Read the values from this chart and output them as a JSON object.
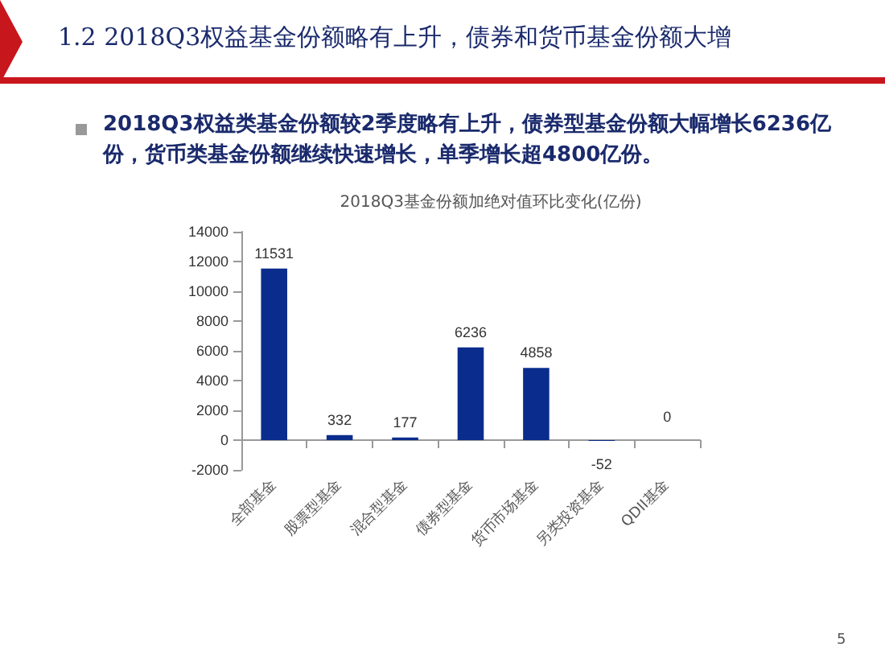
{
  "chart_data": {
    "type": "bar",
    "title": "2018Q3基金份额加绝对值环比变化(亿份)",
    "annotations": [
      "1.2 2018Q3权益基金份额略有上升，债券和货币基金份额大增",
      "2018Q3权益类基金份额较2季度略有上升，债券型基金份额大幅增长6236亿份，货币类基金份额继续快速增长，单季增长超4800亿份。",
      "5"
    ],
    "categories": [
      "全部基金",
      "股票型基金",
      "混合型基金",
      "债券型基金",
      "货币市场基金",
      "另类投资基金",
      "QDII基金"
    ],
    "values": [
      11531,
      332,
      177,
      6236,
      4858,
      -52,
      0
    ],
    "color": "#0a2c8c",
    "ylim": [
      -2000,
      14000
    ],
    "yticks": [
      -2000,
      0,
      2000,
      4000,
      6000,
      8000,
      10000,
      12000,
      14000
    ],
    "grid": false,
    "data_labels": true
  }
}
